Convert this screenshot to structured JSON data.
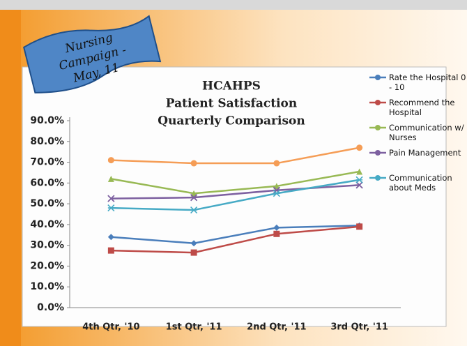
{
  "banner": "Nursing Campaign - May, 11",
  "chart_data": {
    "type": "line",
    "title_lines": [
      "HCAHPS",
      "Patient Satisfaction",
      "Quarterly Comparison"
    ],
    "categories": [
      "4th Qtr, '10",
      "1st Qtr, '11",
      "2nd Qtr, '11",
      "3rd Qtr, '11"
    ],
    "ylim": [
      0,
      90
    ],
    "yticks": [
      {
        "value": 0,
        "label": "0.0%"
      },
      {
        "value": 10,
        "label": "10.0%"
      },
      {
        "value": 20,
        "label": "20.0%"
      },
      {
        "value": 30,
        "label": "30.0%"
      },
      {
        "value": 40,
        "label": "40.0%"
      },
      {
        "value": 50,
        "label": "50.0%"
      },
      {
        "value": 60,
        "label": "60.0%"
      },
      {
        "value": 70,
        "label": "70.0%"
      },
      {
        "value": 80,
        "label": "80.0%"
      },
      {
        "value": 90,
        "label": "90.0%"
      }
    ],
    "series": [
      {
        "name": "Rate the Hospital 0 - 10",
        "color": "#4a7ebb",
        "marker": "diamond",
        "values": [
          34,
          31,
          38.5,
          39.5
        ]
      },
      {
        "name": "Recommend the Hospital",
        "color": "#be4b48",
        "marker": "square",
        "values": [
          27.5,
          26.5,
          35.5,
          39
        ]
      },
      {
        "name": "Communication w/ Nurses",
        "color": "#98b954",
        "marker": "triangle",
        "values": [
          62,
          55,
          58.5,
          65.5
        ]
      },
      {
        "name": "Pain Management",
        "color": "#7d60a0",
        "marker": "x",
        "values": [
          52.5,
          53,
          56.5,
          59
        ]
      },
      {
        "name": "Communication about Meds",
        "color": "#46aac5",
        "marker": "star",
        "values": [
          48,
          47,
          55,
          61.5
        ]
      },
      {
        "color": "#f59d56",
        "marker": "circle",
        "values": [
          71,
          69.5,
          69.5,
          77
        ]
      }
    ]
  }
}
